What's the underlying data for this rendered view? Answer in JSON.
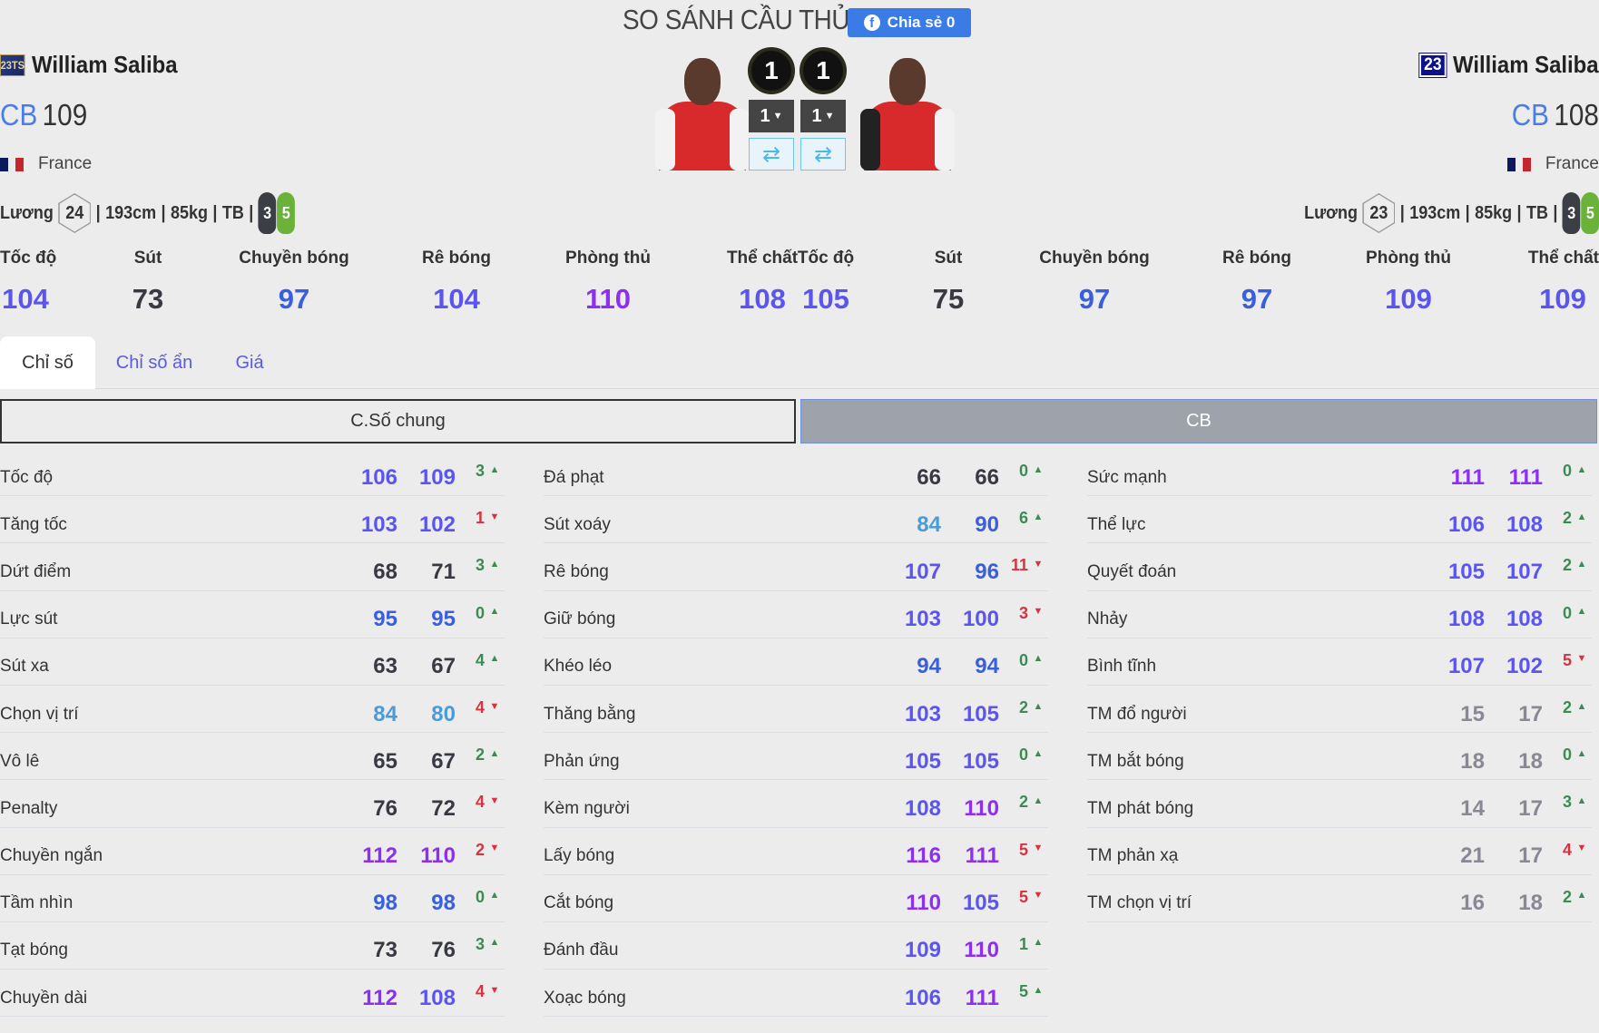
{
  "header": {
    "title": "SO SÁNH CẦU THỦ",
    "share_label": "Chia sẻ 0",
    "share_color": "#3b7be6"
  },
  "players": [
    {
      "season_badge": "23TS",
      "name": "William Saliba",
      "position": "CB",
      "ovr": "109",
      "nation": "France",
      "salary_label": "Lương",
      "salary": "24",
      "height": "193cm",
      "weight": "85kg",
      "body": "TB",
      "weak_foot": "3",
      "strong_foot": "5",
      "level": "1",
      "upgrade": "1",
      "stats": [
        {
          "label": "Tốc độ",
          "value": 104
        },
        {
          "label": "Sút",
          "value": 73
        },
        {
          "label": "Chuyền bóng",
          "value": 97
        },
        {
          "label": "Rê bóng",
          "value": 104
        },
        {
          "label": "Phòng thủ",
          "value": 110
        },
        {
          "label": "Thể chất",
          "value": 108
        }
      ]
    },
    {
      "season_badge": "23",
      "name": "William Saliba",
      "position": "CB",
      "ovr": "108",
      "nation": "France",
      "salary_label": "Lương",
      "salary": "23",
      "height": "193cm",
      "weight": "85kg",
      "body": "TB",
      "weak_foot": "3",
      "strong_foot": "5",
      "level": "1",
      "upgrade": "1",
      "stats": [
        {
          "label": "Tốc độ",
          "value": 105
        },
        {
          "label": "Sút",
          "value": 75
        },
        {
          "label": "Chuyền bóng",
          "value": 97
        },
        {
          "label": "Rê bóng",
          "value": 97
        },
        {
          "label": "Phòng thủ",
          "value": 109
        },
        {
          "label": "Thể chất",
          "value": 109
        }
      ]
    }
  ],
  "tabs": [
    {
      "label": "Chỉ số",
      "active": true
    },
    {
      "label": "Chỉ số ẩn"
    },
    {
      "label": "Giá"
    }
  ],
  "subheaders": {
    "general": "C.Số chung",
    "position": "CB"
  },
  "columns": [
    [
      [
        "Tốc độ",
        106,
        109,
        3,
        "up"
      ],
      [
        "Tăng tốc",
        103,
        102,
        1,
        "down"
      ],
      [
        "Dứt điểm",
        68,
        71,
        3,
        "up"
      ],
      [
        "Lực sút",
        95,
        95,
        0,
        "up"
      ],
      [
        "Sút xa",
        63,
        67,
        4,
        "up"
      ],
      [
        "Chọn vị trí",
        84,
        80,
        4,
        "down"
      ],
      [
        "Vô lê",
        65,
        67,
        2,
        "up"
      ],
      [
        "Penalty",
        76,
        72,
        4,
        "down"
      ],
      [
        "Chuyền ngắn",
        112,
        110,
        2,
        "down"
      ],
      [
        "Tầm nhìn",
        98,
        98,
        0,
        "up"
      ],
      [
        "Tạt bóng",
        73,
        76,
        3,
        "up"
      ],
      [
        "Chuyền dài",
        112,
        108,
        4,
        "down"
      ]
    ],
    [
      [
        "Đá phạt",
        66,
        66,
        0,
        "up"
      ],
      [
        "Sút xoáy",
        84,
        90,
        6,
        "up"
      ],
      [
        "Rê bóng",
        107,
        96,
        11,
        "down"
      ],
      [
        "Giữ bóng",
        103,
        100,
        3,
        "down"
      ],
      [
        "Khéo léo",
        94,
        94,
        0,
        "up"
      ],
      [
        "Thăng bằng",
        103,
        105,
        2,
        "up"
      ],
      [
        "Phản ứng",
        105,
        105,
        0,
        "up"
      ],
      [
        "Kèm người",
        108,
        110,
        2,
        "up"
      ],
      [
        "Lấy bóng",
        116,
        111,
        5,
        "down"
      ],
      [
        "Cắt bóng",
        110,
        105,
        5,
        "down"
      ],
      [
        "Đánh đầu",
        109,
        110,
        1,
        "up"
      ],
      [
        "Xoạc bóng",
        106,
        111,
        5,
        "up"
      ]
    ],
    [
      [
        "Sức mạnh",
        111,
        111,
        0,
        "up"
      ],
      [
        "Thể lực",
        106,
        108,
        2,
        "up"
      ],
      [
        "Quyết đoán",
        105,
        107,
        2,
        "up"
      ],
      [
        "Nhảy",
        108,
        108,
        0,
        "up"
      ],
      [
        "Bình tĩnh",
        107,
        102,
        5,
        "down"
      ],
      [
        "TM đổ người",
        15,
        17,
        2,
        "up"
      ],
      [
        "TM bắt bóng",
        18,
        18,
        0,
        "up"
      ],
      [
        "TM phát bóng",
        14,
        17,
        3,
        "up"
      ],
      [
        "TM phản xạ",
        21,
        17,
        4,
        "down"
      ],
      [
        "TM chọn vị trí",
        16,
        18,
        2,
        "up"
      ]
    ]
  ],
  "icons": {
    "share": "facebook-icon",
    "swap": "swap-arrows-icon",
    "dropdown": "caret-down-icon",
    "up": "triangle-up-icon",
    "down": "triangle-down-icon"
  }
}
